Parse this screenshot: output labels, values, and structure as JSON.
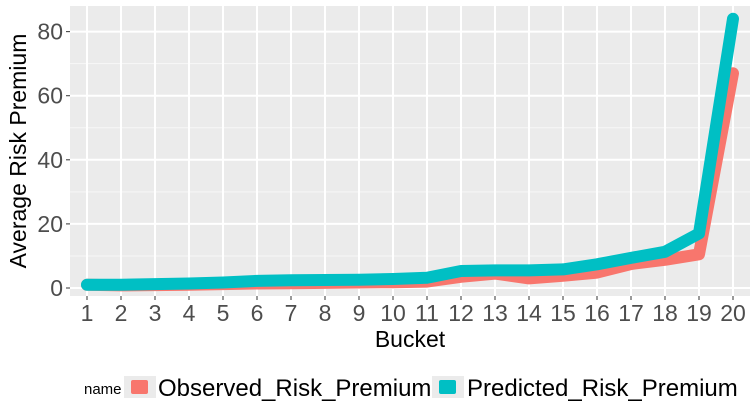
{
  "chart_data": {
    "type": "line",
    "xlabel": "Bucket",
    "ylabel": "Average Risk Premium",
    "x": [
      1,
      2,
      3,
      4,
      5,
      6,
      7,
      8,
      9,
      10,
      11,
      12,
      13,
      14,
      15,
      16,
      17,
      18,
      19,
      20
    ],
    "x_tick_labels": [
      "1",
      "2",
      "3",
      "4",
      "5",
      "6",
      "7",
      "8",
      "9",
      "10",
      "11",
      "12",
      "13",
      "14",
      "15",
      "16",
      "17",
      "18",
      "19",
      "20"
    ],
    "y_ticks": [
      0,
      20,
      40,
      60,
      80
    ],
    "y_tick_labels": [
      "0",
      "20",
      "40",
      "60",
      "80"
    ],
    "ylim": [
      -2.5,
      88
    ],
    "xlim": [
      0.5,
      20.5
    ],
    "grid": true,
    "legend": {
      "title": "name",
      "placement": "bottom"
    },
    "series": [
      {
        "name": "Observed_Risk_Premium",
        "color": "#F8766D",
        "values": [
          1.0,
          0.8,
          0.9,
          1.0,
          1.2,
          1.4,
          1.5,
          1.6,
          1.7,
          1.8,
          2.0,
          3.5,
          4.5,
          3.0,
          3.8,
          4.8,
          7.5,
          8.8,
          10.5,
          67
        ]
      },
      {
        "name": "Predicted_Risk_Premium",
        "color": "#00BFC4",
        "values": [
          1.0,
          1.0,
          1.2,
          1.4,
          1.7,
          2.2,
          2.4,
          2.5,
          2.6,
          2.8,
          3.2,
          5.3,
          5.5,
          5.5,
          5.8,
          7.4,
          9.4,
          11.3,
          17,
          84
        ]
      }
    ]
  }
}
